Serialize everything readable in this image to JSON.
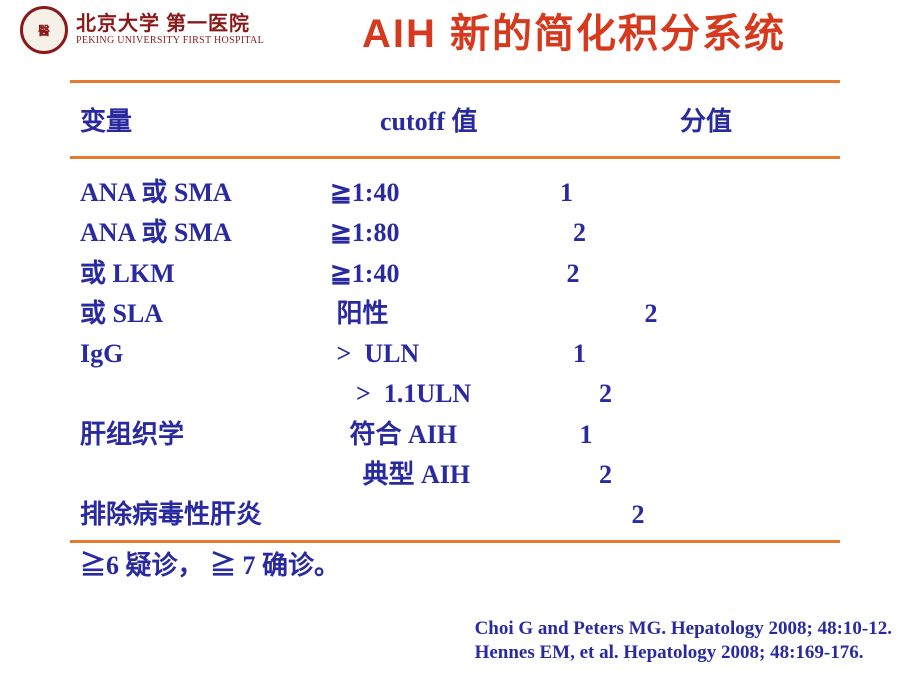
{
  "colors": {
    "title": "#d63a1e",
    "text": "#2a2aa0",
    "rule": "#e67a2e",
    "logo": "#8a1a1a"
  },
  "header": {
    "institution_cn": "北京大学 第一医院",
    "institution_en": "PEKING UNIVERSITY FIRST HOSPITAL",
    "logo_text": "醫",
    "title": "AIH 新的简化积分系统"
  },
  "table": {
    "head": {
      "c1": "变量",
      "c2": "cutoff 值",
      "c3": "分值"
    },
    "rows": [
      {
        "v": "ANA 或 SMA",
        "cu": "≧1:40",
        "sc": "1"
      },
      {
        "v": "ANA 或 SMA",
        "cu": "≧1:80",
        "sc": "  2"
      },
      {
        "v": "或 LKM",
        "cu": "≧1:40",
        "sc": " 2"
      },
      {
        "v": "或 SLA",
        "cu": " 阳性",
        "sc": "             2"
      },
      {
        "v": "IgG",
        "cu": " >  ULN",
        "sc": "  1"
      },
      {
        "v": "",
        "cu": "    >  1.1ULN",
        "sc": "      2"
      },
      {
        "v": "肝组织学",
        "cu": "   符合 AIH",
        "sc": "   1"
      },
      {
        "v": "",
        "cu": "     典型 AIH",
        "sc": "      2"
      },
      {
        "v": "排除病毒性肝炎",
        "cu": "",
        "sc": "           2"
      }
    ],
    "footer_rule": "≧6 疑诊， ≧ 7 确诊。"
  },
  "refs": [
    "Choi G and Peters MG. Hepatology 2008; 48:10-12.",
    "Hennes EM, et al. Hepatology 2008; 48:169-176."
  ]
}
